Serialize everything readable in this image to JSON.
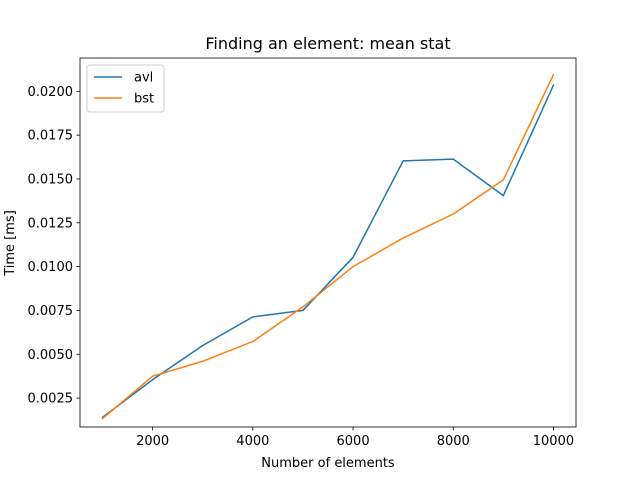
{
  "chart_data": {
    "type": "line",
    "title": "Finding an element: mean stat",
    "xlabel": "Number of elements",
    "ylabel": "Time [ms]",
    "xlim": [
      550,
      10450
    ],
    "ylim": [
      0.00085,
      0.0219
    ],
    "x_ticks": [
      2000,
      4000,
      6000,
      8000,
      10000
    ],
    "x_tick_labels": [
      "2000",
      "4000",
      "6000",
      "8000",
      "10000"
    ],
    "y_ticks": [
      0.0025,
      0.005,
      0.0075,
      0.01,
      0.0125,
      0.015,
      0.0175,
      0.02
    ],
    "y_tick_labels": [
      "0.0025",
      "0.0050",
      "0.0075",
      "0.0100",
      "0.0125",
      "0.0150",
      "0.0175",
      "0.0200"
    ],
    "grid": false,
    "legend_position": "top-left",
    "x": [
      1000,
      2000,
      3000,
      4000,
      5000,
      6000,
      7000,
      8000,
      9000,
      10000
    ],
    "series": [
      {
        "name": "avl",
        "color": "#1f77b4",
        "values": [
          0.0014,
          0.00355,
          0.0055,
          0.00713,
          0.0075,
          0.01053,
          0.01603,
          0.01613,
          0.01405,
          0.02035
        ]
      },
      {
        "name": "bst",
        "color": "#ff7f0e",
        "values": [
          0.00133,
          0.00375,
          0.0046,
          0.00573,
          0.0077,
          0.01,
          0.01163,
          0.013,
          0.01495,
          0.02095
        ]
      }
    ]
  }
}
